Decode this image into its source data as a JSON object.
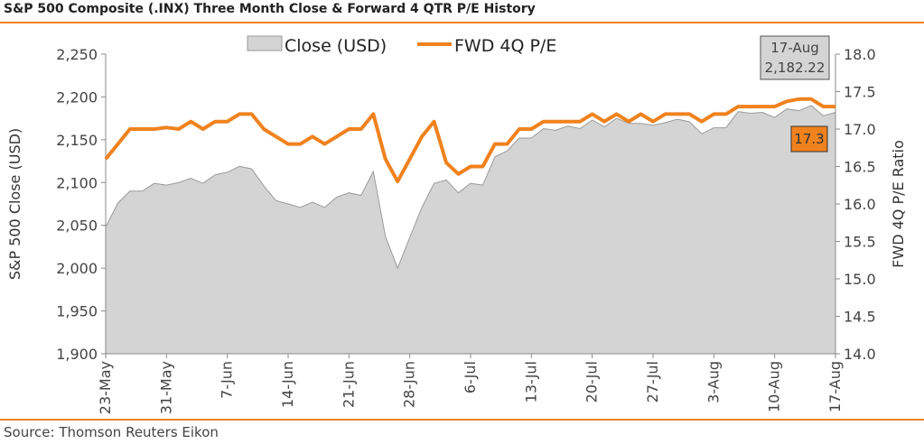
{
  "title": "S&P 500 Composite (.INX) Three Month Close & Forward 4 QTR P/E History",
  "source": "Source: Thomson Reuters Eikon",
  "colors": {
    "accent": "#f0821e",
    "area": "#d4d4d4",
    "areaStroke": "#9a9a9a"
  },
  "chart_data": {
    "type": "area",
    "x": [
      "23-May",
      "24-May",
      "25-May",
      "26-May",
      "27-May",
      "31-May",
      "1-Jun",
      "2-Jun",
      "3-Jun",
      "6-Jun",
      "7-Jun",
      "8-Jun",
      "9-Jun",
      "10-Jun",
      "13-Jun",
      "14-Jun",
      "15-Jun",
      "16-Jun",
      "17-Jun",
      "20-Jun",
      "21-Jun",
      "22-Jun",
      "23-Jun",
      "24-Jun",
      "27-Jun",
      "28-Jun",
      "29-Jun",
      "30-Jun",
      "1-Jul",
      "5-Jul",
      "6-Jul",
      "7-Jul",
      "8-Jul",
      "11-Jul",
      "12-Jul",
      "13-Jul",
      "14-Jul",
      "15-Jul",
      "18-Jul",
      "19-Jul",
      "20-Jul",
      "21-Jul",
      "22-Jul",
      "25-Jul",
      "26-Jul",
      "27-Jul",
      "28-Jul",
      "29-Jul",
      "1-Aug",
      "2-Aug",
      "3-Aug",
      "4-Aug",
      "5-Aug",
      "8-Aug",
      "9-Aug",
      "10-Aug",
      "11-Aug",
      "12-Aug",
      "15-Aug",
      "16-Aug",
      "17-Aug"
    ],
    "x_tick_labels": [
      "23-May",
      "31-May",
      "7-Jun",
      "14-Jun",
      "21-Jun",
      "28-Jun",
      "6-Jul",
      "13-Jul",
      "20-Jul",
      "27-Jul",
      "3-Aug",
      "10-Aug",
      "17-Aug"
    ],
    "series": [
      {
        "name": "Close (USD)",
        "type": "area",
        "axis": "left",
        "values": [
          2048,
          2076,
          2090,
          2090,
          2099,
          2097,
          2100,
          2105,
          2099,
          2109,
          2112,
          2119,
          2116,
          2096,
          2079,
          2075,
          2071,
          2077,
          2071,
          2083,
          2088,
          2085,
          2113,
          2037,
          2000,
          2036,
          2071,
          2099,
          2103,
          2088,
          2099,
          2097,
          2130,
          2137,
          2152,
          2152,
          2163,
          2161,
          2166,
          2163,
          2173,
          2165,
          2175,
          2169,
          2169,
          2167,
          2170,
          2174,
          2171,
          2157,
          2164,
          2164,
          2183,
          2181,
          2182,
          2176,
          2186,
          2184,
          2190,
          2178,
          2182
        ]
      },
      {
        "name": "FWD 4Q P/E",
        "type": "line",
        "axis": "right",
        "values": [
          16.6,
          16.8,
          17.0,
          17.0,
          17.0,
          17.02,
          17.0,
          17.1,
          17.0,
          17.1,
          17.1,
          17.2,
          17.2,
          17.0,
          16.9,
          16.8,
          16.8,
          16.9,
          16.8,
          16.9,
          17.0,
          17.0,
          17.2,
          16.6,
          16.3,
          16.6,
          16.9,
          17.1,
          16.55,
          16.4,
          16.5,
          16.5,
          16.8,
          16.8,
          17.0,
          17.0,
          17.1,
          17.1,
          17.1,
          17.1,
          17.2,
          17.1,
          17.2,
          17.1,
          17.2,
          17.1,
          17.2,
          17.2,
          17.2,
          17.1,
          17.2,
          17.2,
          17.3,
          17.3,
          17.3,
          17.3,
          17.37,
          17.4,
          17.4,
          17.3,
          17.3
        ]
      }
    ],
    "y_left": {
      "label": "S&P 500 Close (USD)",
      "min": 1900,
      "max": 2250,
      "ticks": [
        "1,900",
        "1,950",
        "2,000",
        "2,050",
        "2,100",
        "2,150",
        "2,200",
        "2,250"
      ]
    },
    "y_right": {
      "label": "FWD 4Q P/E Ratio",
      "min": 14.0,
      "max": 18.0,
      "ticks": [
        "14.0",
        "14.5",
        "15.0",
        "15.5",
        "16.0",
        "16.5",
        "17.0",
        "17.5",
        "18.0"
      ]
    },
    "annotations": {
      "close_box": [
        "17-Aug",
        "2,182.22"
      ],
      "pe_box": "17.3"
    },
    "legend_position": "top-center",
    "grid": false
  }
}
